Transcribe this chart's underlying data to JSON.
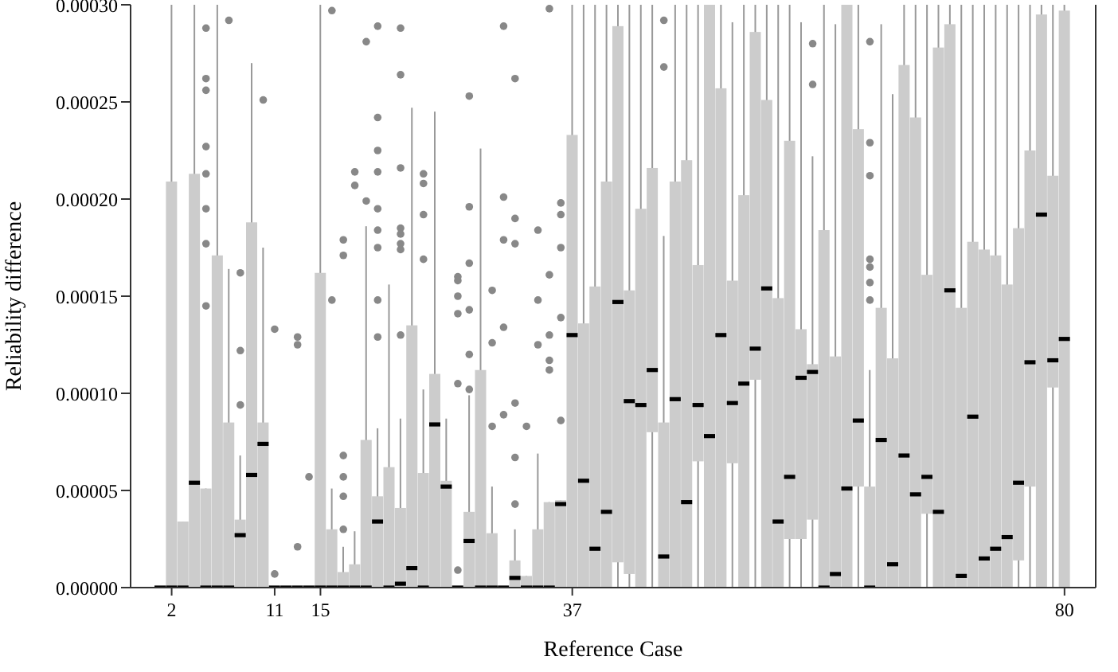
{
  "chart_data": {
    "type": "box",
    "xlabel": "Reference Case",
    "ylabel": "Reliability difference",
    "categories": [
      null,
      "2",
      null,
      null,
      null,
      null,
      null,
      null,
      null,
      null,
      "11",
      null,
      null,
      null,
      "15",
      null,
      null,
      null,
      null,
      null,
      null,
      null,
      null,
      null,
      null,
      null,
      null,
      null,
      null,
      null,
      null,
      null,
      null,
      null,
      null,
      null,
      "37",
      null,
      null,
      null,
      null,
      null,
      null,
      null,
      null,
      null,
      null,
      null,
      null,
      null,
      null,
      null,
      null,
      null,
      null,
      null,
      null,
      null,
      null,
      null,
      null,
      null,
      null,
      null,
      null,
      null,
      null,
      null,
      null,
      null,
      null,
      null,
      null,
      null,
      null,
      null,
      null,
      null,
      null,
      "80"
    ],
    "ylim": [
      0,
      0.0003
    ],
    "yticks": [
      {
        "value": 0,
        "label": "0.00000"
      },
      {
        "value": 5e-05,
        "label": "0.00005"
      },
      {
        "value": 0.0001,
        "label": "0.00010"
      },
      {
        "value": 0.00015,
        "label": "0.00015"
      },
      {
        "value": 0.0002,
        "label": "0.00020"
      },
      {
        "value": 0.00025,
        "label": "0.00025"
      },
      {
        "value": 0.0003,
        "label": "0.00030"
      }
    ],
    "series": [
      {
        "color": "#cccccc",
        "boxes": [
          {
            "low": 0,
            "q1": 0,
            "median": 0,
            "q3": 0,
            "high": 0
          },
          {
            "low": 0,
            "q1": 0,
            "median": 0,
            "q3": 0.000209,
            "high": 0.0003
          },
          {
            "low": 0,
            "q1": 0,
            "median": 0,
            "q3": 3.4e-05,
            "high": 3.4e-05
          },
          {
            "low": 0,
            "q1": 0,
            "median": 5.4e-05,
            "q3": 0.000213,
            "high": 0.0003
          },
          {
            "low": 0,
            "q1": 0,
            "median": 0,
            "q3": 5.1e-05,
            "high": 5.1e-05,
            "outliers": [
              0.000288,
              0.000262,
              0.000256,
              0.000227,
              0.000213,
              0.000195,
              0.000177,
              0.000145
            ]
          },
          {
            "low": 0,
            "q1": 0,
            "median": 0,
            "q3": 0.000171,
            "high": 0.0003
          },
          {
            "low": 0,
            "q1": 0,
            "median": 0,
            "q3": 8.5e-05,
            "high": 0.000164,
            "outliers": [
              0.000292
            ]
          },
          {
            "low": 0,
            "q1": 0,
            "median": 2.7e-05,
            "q3": 3.5e-05,
            "high": 6.8e-05,
            "outliers": [
              0.000162,
              0.000122,
              9.4e-05
            ]
          },
          {
            "low": 0,
            "q1": 0,
            "median": 5.8e-05,
            "q3": 0.000188,
            "high": 0.00027
          },
          {
            "low": 0,
            "q1": 0,
            "median": 7.4e-05,
            "q3": 8.5e-05,
            "high": 0.000175,
            "outliers": [
              0.000251
            ]
          },
          {
            "low": 0,
            "q1": 0,
            "median": 0,
            "q3": 0,
            "high": 0,
            "outliers": [
              0.000133,
              7e-06
            ]
          },
          {
            "low": 0,
            "q1": 0,
            "median": 0,
            "q3": 0,
            "high": 0
          },
          {
            "low": 0,
            "q1": 0,
            "median": 0,
            "q3": 0,
            "high": 0,
            "outliers": [
              0.000129,
              0.000125,
              2.1e-05
            ]
          },
          {
            "low": 0,
            "q1": 0,
            "median": 0,
            "q3": 0,
            "high": 0,
            "outliers": [
              5.7e-05
            ]
          },
          {
            "low": 0,
            "q1": 0,
            "median": 0,
            "q3": 0.000162,
            "high": 0.0003
          },
          {
            "low": 0,
            "q1": 0,
            "median": 0,
            "q3": 3e-05,
            "high": 5.1e-05,
            "outliers": [
              0.000297,
              0.000148
            ]
          },
          {
            "low": 0,
            "q1": 0,
            "median": 0,
            "q3": 8e-06,
            "high": 2.1e-05,
            "outliers": [
              0.000179,
              0.000171,
              6.8e-05,
              5.7e-05,
              4.7e-05,
              3e-05
            ]
          },
          {
            "low": 0,
            "q1": 0,
            "median": 0,
            "q3": 1.2e-05,
            "high": 2.9e-05,
            "outliers": [
              0.000214,
              0.000207
            ]
          },
          {
            "low": 0,
            "q1": 0,
            "median": 0,
            "q3": 7.6e-05,
            "high": 0.000186,
            "outliers": [
              0.000281,
              0.000199
            ]
          },
          {
            "low": 0,
            "q1": 0,
            "median": 3.4e-05,
            "q3": 4.7e-05,
            "high": 8.2e-05,
            "outliers": [
              0.000289,
              0.000242,
              0.000225,
              0.000214,
              0.000195,
              0.000184,
              0.000175,
              0.000148,
              0.000129
            ]
          },
          {
            "low": 0,
            "q1": 0,
            "median": 0,
            "q3": 6.2e-05,
            "high": 0.000156
          },
          {
            "low": 0,
            "q1": 0,
            "median": 2e-06,
            "q3": 4.1e-05,
            "high": 8.7e-05,
            "outliers": [
              0.000288,
              0.000264,
              0.000216,
              0.000185,
              0.000182,
              0.000177,
              0.000174,
              0.00013
            ]
          },
          {
            "low": 0,
            "q1": 0,
            "median": 1e-05,
            "q3": 0.000135,
            "high": 0.000247
          },
          {
            "low": 0,
            "q1": 0,
            "median": 0,
            "q3": 5.9e-05,
            "high": 0.000102,
            "outliers": [
              0.000213,
              0.000208,
              0.000192,
              0.000169
            ]
          },
          {
            "low": 0,
            "q1": 0,
            "median": 8.4e-05,
            "q3": 0.00011,
            "high": 0.000245
          },
          {
            "low": 0,
            "q1": 0,
            "median": 5.2e-05,
            "q3": 5.5e-05,
            "high": 8.7e-05
          },
          {
            "low": 0,
            "q1": 0,
            "median": 0,
            "q3": 0,
            "high": 0,
            "outliers": [
              0.00016,
              0.000158,
              0.00015,
              0.000141,
              0.000105,
              9e-06
            ]
          },
          {
            "low": 0,
            "q1": 0,
            "median": 2.4e-05,
            "q3": 3.9e-05,
            "high": 9.9e-05,
            "outliers": [
              0.000253,
              0.000196,
              0.000167,
              0.000143,
              0.00012,
              0.000102
            ]
          },
          {
            "low": 0,
            "q1": 0,
            "median": 0,
            "q3": 0.000112,
            "high": 0.000226
          },
          {
            "low": 0,
            "q1": 0,
            "median": 0,
            "q3": 2.8e-05,
            "high": 5.2e-05,
            "outliers": [
              0.000153,
              0.000126,
              8.3e-05
            ]
          },
          {
            "low": 0,
            "q1": 0,
            "median": 0,
            "q3": 0,
            "high": 0,
            "outliers": [
              0.000289,
              0.000201,
              0.000179,
              0.000134,
              8.9e-05
            ]
          },
          {
            "low": 0,
            "q1": 0,
            "median": 5e-06,
            "q3": 1.4e-05,
            "high": 3e-05,
            "outliers": [
              0.000262,
              0.00019,
              0.000177,
              9.5e-05,
              6.7e-05,
              4.3e-05
            ]
          },
          {
            "low": 0,
            "q1": 0,
            "median": 0,
            "q3": 6e-06,
            "high": 6e-06,
            "outliers": [
              8.3e-05
            ]
          },
          {
            "low": 0,
            "q1": 0,
            "median": 0,
            "q3": 3e-05,
            "high": 6.9e-05,
            "outliers": [
              0.000184,
              0.000148,
              0.000125
            ]
          },
          {
            "low": 0,
            "q1": 0,
            "median": 0,
            "q3": 4.4e-05,
            "high": 4.4e-05,
            "outliers": [
              0.000298,
              0.000161,
              0.00013,
              0.000117,
              0.000112
            ]
          },
          {
            "low": 0,
            "q1": 0,
            "median": 4.3e-05,
            "q3": 4.5e-05,
            "high": 4.5e-05,
            "outliers": [
              0.000198,
              0.000192,
              0.000175,
              0.000139,
              8.6e-05
            ]
          },
          {
            "low": 0,
            "q1": 0,
            "median": 0.00013,
            "q3": 0.000233,
            "high": 0.0003
          },
          {
            "low": 0,
            "q1": 0,
            "median": 5.5e-05,
            "q3": 0.000136,
            "high": 0.0003
          },
          {
            "low": 0,
            "q1": 0,
            "median": 2e-05,
            "q3": 0.000155,
            "high": 0.0003
          },
          {
            "low": 0,
            "q1": 0,
            "median": 3.9e-05,
            "q3": 0.000209,
            "high": 0.0003
          },
          {
            "low": 0,
            "q1": 1.3e-05,
            "median": 0.000147,
            "q3": 0.000289,
            "high": 0.0003
          },
          {
            "low": 0,
            "q1": 7e-06,
            "median": 9.6e-05,
            "q3": 0.000153,
            "high": 0.0003
          },
          {
            "low": 0,
            "q1": 0,
            "median": 9.4e-05,
            "q3": 0.000195,
            "high": 0.0003
          },
          {
            "low": 0,
            "q1": 8e-05,
            "median": 0.000112,
            "q3": 0.000216,
            "high": 0.0003
          },
          {
            "low": 0,
            "q1": 0,
            "median": 1.6e-05,
            "q3": 8.5e-05,
            "high": 0.000181,
            "outliers": [
              0.000292,
              0.000268
            ]
          },
          {
            "low": 0,
            "q1": 0,
            "median": 9.7e-05,
            "q3": 0.000209,
            "high": 0.0003
          },
          {
            "low": 0,
            "q1": 0,
            "median": 4.4e-05,
            "q3": 0.00022,
            "high": 0.0003
          },
          {
            "low": 0,
            "q1": 6.5e-05,
            "median": 9.4e-05,
            "q3": 0.000166,
            "high": 0.0003
          },
          {
            "low": 0,
            "q1": 0,
            "median": 7.8e-05,
            "q3": 0.0003,
            "high": 0.0003
          },
          {
            "low": 0,
            "q1": 0,
            "median": 0.00013,
            "q3": 0.000257,
            "high": 0.0003
          },
          {
            "low": 0,
            "q1": 6.4e-05,
            "median": 9.5e-05,
            "q3": 0.000158,
            "high": 0.000291
          },
          {
            "low": 0,
            "q1": 0,
            "median": 0.000105,
            "q3": 0.000202,
            "high": 0.0003
          },
          {
            "low": 0,
            "q1": 0.000107,
            "median": 0.000123,
            "q3": 0.000286,
            "high": 0.0003
          },
          {
            "low": 0,
            "q1": 0,
            "median": 0.000154,
            "q3": 0.000251,
            "high": 0.0003
          },
          {
            "low": 0,
            "q1": 0,
            "median": 3.4e-05,
            "q3": 0.000149,
            "high": 0.0003
          },
          {
            "low": 0,
            "q1": 2.5e-05,
            "median": 5.7e-05,
            "q3": 0.00023,
            "high": 0.0003
          },
          {
            "low": 0,
            "q1": 2.5e-05,
            "median": 0.000108,
            "q3": 0.000133,
            "high": 0.000291
          },
          {
            "low": 0,
            "q1": 3.5e-05,
            "median": 0.000111,
            "q3": 0.000115,
            "high": 0.000222,
            "outliers": [
              0.00028,
              0.000259
            ]
          },
          {
            "low": 0,
            "q1": 0,
            "median": 0,
            "q3": 0.000184,
            "high": 0.0003
          },
          {
            "low": 0,
            "q1": 0,
            "median": 7e-06,
            "q3": 0.000119,
            "high": 0.00029
          },
          {
            "low": 0,
            "q1": 0,
            "median": 5.1e-05,
            "q3": 0.0003,
            "high": 0.0003
          },
          {
            "low": 0,
            "q1": 5.2e-05,
            "median": 8.6e-05,
            "q3": 0.000236,
            "high": 0.0003
          },
          {
            "low": 0,
            "q1": 0,
            "median": 0,
            "q3": 5.2e-05,
            "high": 0.000112,
            "outliers": [
              0.000281,
              0.000229,
              0.000212,
              0.000169,
              0.000165,
              0.000157,
              0.000148
            ]
          },
          {
            "low": 0,
            "q1": 0,
            "median": 7.6e-05,
            "q3": 0.000144,
            "high": 0.00029
          },
          {
            "low": 0,
            "q1": 0,
            "median": 1.2e-05,
            "q3": 0.000118,
            "high": 0.000254
          },
          {
            "low": 0,
            "q1": 0,
            "median": 6.8e-05,
            "q3": 0.000269,
            "high": 0.0003
          },
          {
            "low": 0,
            "q1": 0,
            "median": 4.8e-05,
            "q3": 0.000242,
            "high": 0.0003
          },
          {
            "low": 0,
            "q1": 3.8e-05,
            "median": 5.7e-05,
            "q3": 0.000161,
            "high": 0.0003
          },
          {
            "low": 0,
            "q1": 0,
            "median": 3.9e-05,
            "q3": 0.000278,
            "high": 0.0003
          },
          {
            "low": 0,
            "q1": 0,
            "median": 0.000153,
            "q3": 0.00029,
            "high": 0.0003
          },
          {
            "low": 0,
            "q1": 0,
            "median": 6e-06,
            "q3": 0.000144,
            "high": 0.0003
          },
          {
            "low": 0,
            "q1": 0,
            "median": 8.8e-05,
            "q3": 0.000178,
            "high": 0.0003
          },
          {
            "low": 0,
            "q1": 0,
            "median": 1.5e-05,
            "q3": 0.000174,
            "high": 0.0003
          },
          {
            "low": 0,
            "q1": 0,
            "median": 2e-05,
            "q3": 0.000171,
            "high": 0.0003
          },
          {
            "low": 0,
            "q1": 0,
            "median": 2.6e-05,
            "q3": 0.000156,
            "high": 0.0003
          },
          {
            "low": 0,
            "q1": 1.4e-05,
            "median": 5.4e-05,
            "q3": 0.000185,
            "high": 0.0003
          },
          {
            "low": 0,
            "q1": 5.2e-05,
            "median": 0.000116,
            "q3": 0.000225,
            "high": 0.0003
          },
          {
            "low": 0,
            "q1": 0,
            "median": 0.000192,
            "q3": 0.000295,
            "high": 0.0003
          },
          {
            "low": 0,
            "q1": 0.000103,
            "median": 0.000117,
            "q3": 0.000212,
            "high": 0.0003
          },
          {
            "low": 0,
            "q1": 0,
            "median": 0.000128,
            "q3": 0.000297,
            "high": 0.0003
          }
        ]
      }
    ]
  }
}
